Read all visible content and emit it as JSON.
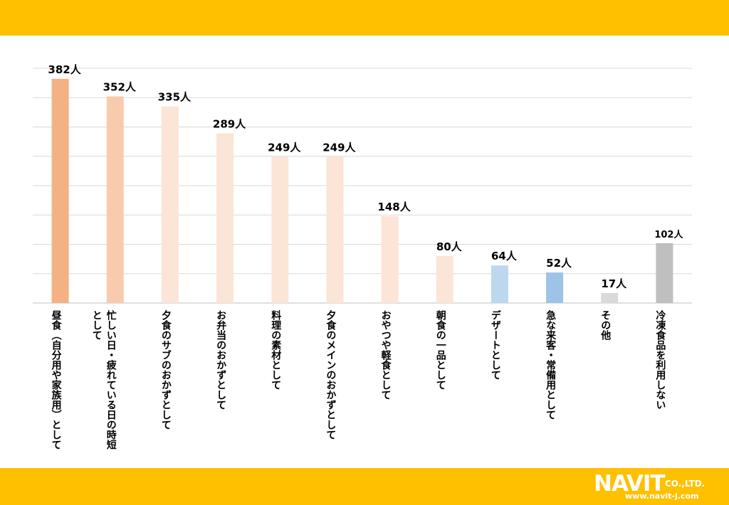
{
  "colors": {
    "band": "#FFC000",
    "grid": "#D9D9D9",
    "axis": "#BFBFBF",
    "text": "#000000"
  },
  "logo": {
    "brand": "NAVIT",
    "suffix": "CO.,LTD.",
    "url": "www.navit-j.com"
  },
  "chart_data": {
    "type": "bar",
    "unit_suffix": "人",
    "ylim": [
      0,
      400
    ],
    "grid": true,
    "categories": [
      "昼食（自分用や家族用）として",
      "忙しい日・疲れている日の時短として",
      "夕食のサブのおかずとして",
      "お弁当のおかずとして",
      "料理の素材として",
      "夕食のメインのおかずとして",
      "おやつや軽食として",
      "朝食の一品として",
      "デザートとして",
      "急な来客・常備用として",
      "その他",
      "冷凍食品を利用しない"
    ],
    "values": [
      382,
      352,
      335,
      289,
      249,
      249,
      148,
      80,
      64,
      52,
      17,
      102
    ],
    "bar_colors": [
      "#F4B183",
      "#F8CBAD",
      "#FBE5D6",
      "#FBE5D6",
      "#FBE5D6",
      "#FBE5D6",
      "#FBE5D6",
      "#FBE5D6",
      "#BDD7EE",
      "#9DC3E6",
      "#D9D9D9",
      "#BFBFBF"
    ]
  }
}
